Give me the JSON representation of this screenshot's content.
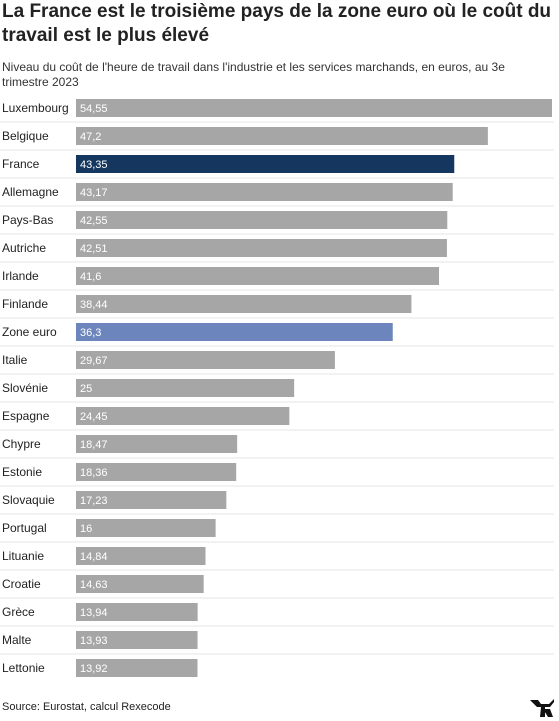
{
  "header": {
    "title": "La France est le troisième pays de la zone euro où le coût du travail est le plus élevé",
    "subtitle": "Niveau du coût de l'heure de travail dans l'industrie et les services marchands, en euros, au 3e trimestre 2023"
  },
  "footer": {
    "source": "Source: Eurostat, calcul Rexecode"
  },
  "colors": {
    "default_bar": "#a6a6a6",
    "france_bar": "#14365f",
    "eurozone_bar": "#6c86bd",
    "separator": "#e4e4e4"
  },
  "chart_data": {
    "type": "bar",
    "orientation": "horizontal",
    "categories": [
      "Luxembourg",
      "Belgique",
      "France",
      "Allemagne",
      "Pays-Bas",
      "Autriche",
      "Irlande",
      "Finlande",
      "Zone euro",
      "Italie",
      "Slovénie",
      "Espagne",
      "Chypre",
      "Estonie",
      "Slovaquie",
      "Portugal",
      "Lituanie",
      "Croatie",
      "Grèce",
      "Malte",
      "Lettonie"
    ],
    "values": [
      54.55,
      47.2,
      43.35,
      43.17,
      42.55,
      42.51,
      41.6,
      38.44,
      36.3,
      29.67,
      25,
      24.45,
      18.47,
      18.36,
      17.23,
      16,
      14.84,
      14.63,
      13.94,
      13.93,
      13.92
    ],
    "value_labels": [
      "54,55",
      "47,2",
      "43,35",
      "43,17",
      "42,55",
      "42,51",
      "41,6",
      "38,44",
      "36,3",
      "29,67",
      "25",
      "24,45",
      "18,47",
      "18,36",
      "17,23",
      "16",
      "14,84",
      "14,63",
      "13,94",
      "13,93",
      "13,92"
    ],
    "highlight": {
      "France": "#14365f",
      "Zone euro": "#6c86bd"
    },
    "xlim": [
      0,
      54.55
    ],
    "grid": false,
    "legend": "none"
  }
}
